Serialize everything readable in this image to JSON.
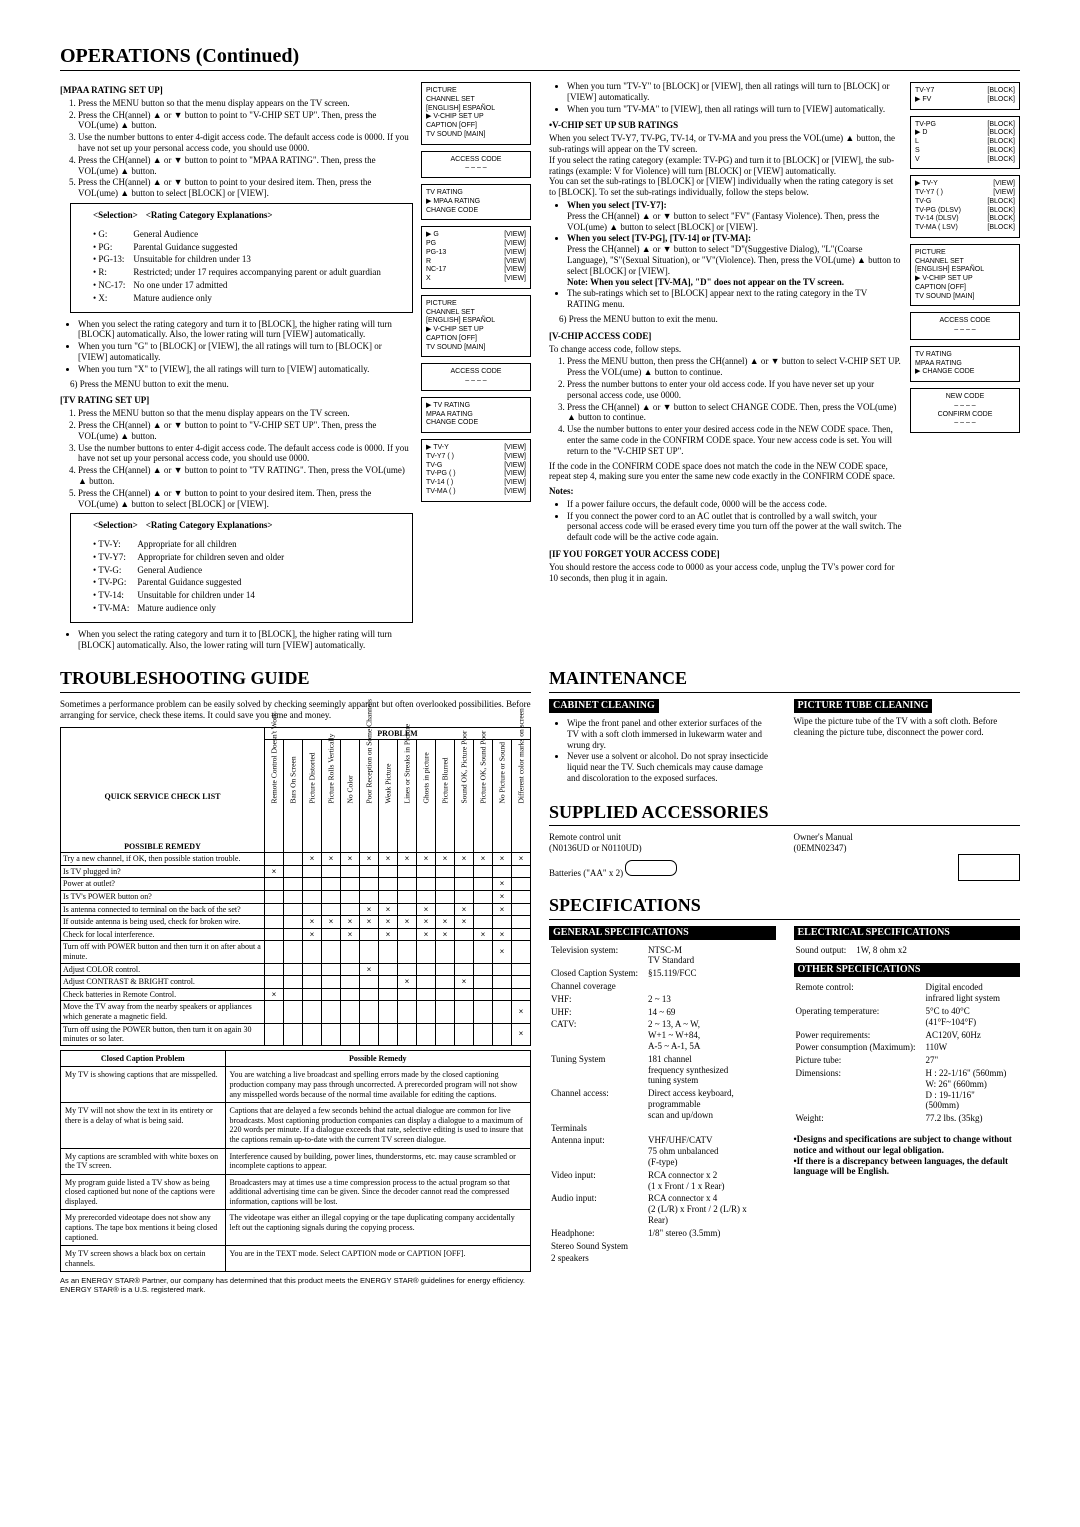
{
  "title_ops": "OPERATIONS (Continued)",
  "mpaa": {
    "head": "[MPAA RATING SET UP]",
    "steps": [
      "Press the MENU button so that the menu display appears on the TV screen.",
      "Press the CH(annel) ▲ or ▼ button to point to \"V-CHIP SET UP\". Then, press the VOL(ume) ▲ button.",
      "Use the number buttons to enter 4-digit access code. The default access code is 0000. If you have not set up your personal access code, you should use 0000.",
      "Press the CH(annel) ▲ or ▼ button to point to \"MPAA RATING\". Then, press the VOL(ume) ▲ button.",
      "Press the CH(annel) ▲ or ▼ button to point to your desired item. Then, press the VOL(ume) ▲ button to select [BLOCK] or [VIEW]."
    ],
    "sel_head": "<Selection>",
    "exp_head": "<Rating Category Explanations>",
    "ratings": [
      [
        "• G:",
        "General Audience"
      ],
      [
        "• PG:",
        "Parental Guidance suggested"
      ],
      [
        "• PG-13:",
        "Unsuitable for children under 13"
      ],
      [
        "• R:",
        "Restricted; under 17 requires accompanying parent or adult guardian"
      ],
      [
        "• NC-17:",
        "No one under 17 admitted"
      ],
      [
        "• X:",
        "Mature audience only"
      ]
    ],
    "notes": [
      "When you select the rating category and turn it to [BLOCK], the higher rating will turn [BLOCK] automatically. Also, the lower rating will turn [VIEW] automatically.",
      "When you turn \"G\" to [BLOCK] or [VIEW], the all ratings will turn to [BLOCK] or [VIEW] automatically.",
      "When you turn \"X\" to [VIEW], the all ratings will turn to [VIEW] automatically."
    ],
    "step6": "Press the MENU button to exit the menu."
  },
  "tv": {
    "head": "[TV RATING SET UP]",
    "steps": [
      "Press the MENU button so that the menu display appears on the TV screen.",
      "Press the CH(annel) ▲ or ▼ button to point to \"V-CHIP SET UP\". Then, press the VOL(ume) ▲ button.",
      "Use the number buttons to enter 4-digit access code. The default access code is 0000. If you have not set up your personal access code, you should use 0000.",
      "Press the CH(annel) ▲ or ▼ button to point to \"TV RATING\". Then, press the VOL(ume) ▲ button.",
      "Press the CH(annel) ▲ or ▼ button to point to your desired item. Then, press the VOL(ume) ▲ button to select [BLOCK] or [VIEW]."
    ],
    "ratings": [
      [
        "• TV-Y:",
        "Appropriate for all children"
      ],
      [
        "• TV-Y7:",
        "Appropriate for children seven and older"
      ],
      [
        "• TV-G:",
        "General Audience"
      ],
      [
        "• TV-PG:",
        "Parental Guidance suggested"
      ],
      [
        "• TV-14:",
        "Unsuitable for children under 14"
      ],
      [
        "• TV-MA:",
        "Mature audience only"
      ]
    ],
    "note": "When you select the rating category and turn it to [BLOCK], the higher rating will turn [BLOCK] automatically. Also, the lower rating will turn [VIEW] automatically."
  },
  "right": {
    "top_bullets": [
      "When you turn \"TV-Y\" to [BLOCK] or [VIEW], then all ratings will turn to [BLOCK] or [VIEW] automatically.",
      "When you turn \"TV-MA\" to [VIEW], then all ratings will turn to [VIEW] automatically."
    ],
    "sub_head": "•V-CHIP SET UP SUB RATINGS",
    "sub_text": "When you select TV-Y7, TV-PG, TV-14, or TV-MA and you press the VOL(ume) ▲ button, the sub-ratings will appear on the TV screen.\nIf you select the rating category (example: TV-PG) and turn it to [BLOCK] or [VIEW], the sub-ratings (example: V for Violence) will turn [BLOCK] or [VIEW] automatically.\nYou can set the sub-ratings to [BLOCK] or [VIEW] individually when the rating category is set to [BLOCK]. To set the sub-ratings individually, follow the steps below.",
    "when_y7_head": "When you select [TV-Y7]:",
    "when_y7_body": "Press the CH(annel) ▲ or ▼ button to select \"FV\" (Fantasy Violence). Then, press the VOL(ume) ▲ button to select [BLOCK] or [VIEW].",
    "when_pg_head": "When you select [TV-PG], [TV-14] or [TV-MA]:",
    "when_pg_body": "Press the CH(annel) ▲ or ▼ button to select \"D\"(Suggestive Dialog), \"L\"(Coarse Language), \"S\"(Sexual Situation), or \"V\"(Violence). Then, press the VOL(ume) ▲ button to select [BLOCK] or [VIEW].",
    "note_extra": "Note: When you select [TV-MA], \"D\" does not appear on the TV screen.",
    "sub_bullet": "The sub-ratings which set to [BLOCK] appear next to the rating category in the TV RATING menu.",
    "step6": "Press the MENU button to exit the menu.",
    "access_head": "[V-CHIP ACCESS CODE]",
    "access_lead": "To change access code, follow steps.",
    "access_steps": [
      "Press the MENU button, then press the CH(annel) ▲ or ▼ button to select V-CHIP SET UP. Press the VOL(ume) ▲ button to continue.",
      "Press the number buttons to enter your old access code. If you have never set up your personal access code, use 0000.",
      "Press the CH(annel) ▲ or ▼ button to select CHANGE CODE. Then, press the VOL(ume) ▲ button to continue.",
      "Use the number buttons to enter your desired access code in the NEW CODE space. Then, enter the same code in the CONFIRM CODE space. Your new access code is set. You will return to the \"V-CHIP SET UP\"."
    ],
    "access_warn": "If the code in the CONFIRM CODE space does not match the code in the NEW CODE space, repeat step 4, making sure you enter the same new code exactly in the CONFIRM CODE space.",
    "notes_head": "Notes:",
    "notes": [
      "If a power failure occurs, the default code, 0000 will be the access code.",
      "If you connect the power cord to an AC outlet that is controlled by a wall switch, your personal access code will be erased every time you turn off the power at the wall switch. The default code will be the active code again."
    ],
    "forget_head": "[IF YOU FORGET YOUR ACCESS CODE]",
    "forget_body": "You should restore the access code to 0000 as your access code, unplug the TV's power cord for 10 seconds, then plug it in again."
  },
  "osd": {
    "picture_menu": "PICTURE\nCHANNEL SET\n[ENGLISH] ESPAÑOL\n▶ V-CHIP SET UP\nCAPTION [OFF]\nTV SOUND [MAIN]",
    "access_code": "ACCESS CODE\n– – – –",
    "mpaa_menu": "TV RATING\n▶ MPAA RATING\nCHANGE CODE",
    "mpaa_list": [
      [
        "▶ G",
        "[VIEW]"
      ],
      [
        "PG",
        "[VIEW]"
      ],
      [
        "PG-13",
        "[VIEW]"
      ],
      [
        "R",
        "[VIEW]"
      ],
      [
        "NC-17",
        "[VIEW]"
      ],
      [
        "X",
        "[VIEW]"
      ]
    ],
    "tv_menu": "▶ TV RATING\nMPAA RATING\nCHANGE CODE",
    "tv_list": [
      [
        "▶ TV-Y",
        "[VIEW]"
      ],
      [
        "TV-Y7 (      )",
        "[VIEW]"
      ],
      [
        "TV-G",
        "[VIEW]"
      ],
      [
        "TV-PG (      )",
        "[VIEW]"
      ],
      [
        "TV-14 (      )",
        "[VIEW]"
      ],
      [
        "TV-MA (      )",
        "[VIEW]"
      ]
    ],
    "sub_y7": [
      [
        "TV-Y7",
        "[BLOCK]"
      ],
      [
        "▶ FV",
        "[BLOCK]"
      ]
    ],
    "sub_pg": [
      [
        "TV-PG",
        "[BLOCK]"
      ],
      [
        "▶ D",
        "[BLOCK]"
      ],
      [
        "L",
        "[BLOCK]"
      ],
      [
        "S",
        "[BLOCK]"
      ],
      [
        "V",
        "[BLOCK]"
      ]
    ],
    "sub_all": [
      [
        "▶ TV-Y",
        "[VIEW]"
      ],
      [
        "TV-Y7 (      )",
        "[VIEW]"
      ],
      [
        "TV-G",
        "[BLOCK]"
      ],
      [
        "TV-PG (DLSV)",
        "[BLOCK]"
      ],
      [
        "TV-14  (DLSV)",
        "[BLOCK]"
      ],
      [
        "TV-MA (  LSV)",
        "[BLOCK]"
      ]
    ],
    "change_menu": "TV RATING\nMPAA RATING\n▶ CHANGE CODE",
    "new_code": "NEW CODE\n– – – –\nCONFIRM CODE\n– – – –"
  },
  "trouble": {
    "title": "TROUBLESHOOTING GUIDE",
    "intro": "Sometimes a performance problem can be easily solved by checking seemingly apparent but often overlooked possibilities. Before arranging for service, check these items. It could save you time and money.",
    "problem": "PROBLEM",
    "qsc": "QUICK SERVICE CHECK LIST",
    "pr": "POSSIBLE REMEDY",
    "cols": [
      "Remote Control Doesn't Work",
      "Bars On Screen",
      "Picture Distorted",
      "Picture Rolls Vertically",
      "No Color",
      "Poor Reception on Some Channels",
      "Weak Picture",
      "Lines or Streaks in Picture",
      "Ghosts in picture",
      "Picture Blurred",
      "Sound OK, Picture Poor",
      "Picture OK, Sound Poor",
      "No Picture or Sound",
      "Different color marks on screen"
    ],
    "rows": [
      {
        "label": "Try a new channel, if OK, then possible station trouble.",
        "marks": [
          "",
          "",
          "×",
          "×",
          "×",
          "×",
          "×",
          "×",
          "×",
          "×",
          "×",
          "×",
          "×",
          "×"
        ]
      },
      {
        "label": "Is TV plugged in?",
        "marks": [
          "×",
          "",
          "",
          "",
          "",
          "",
          "",
          "",
          "",
          "",
          "",
          "",
          "",
          ""
        ]
      },
      {
        "label": "Power at outlet?",
        "marks": [
          "",
          "",
          "",
          "",
          "",
          "",
          "",
          "",
          "",
          "",
          "",
          "",
          "×",
          ""
        ]
      },
      {
        "label": "Is TV's POWER button on?",
        "marks": [
          "",
          "",
          "",
          "",
          "",
          "",
          "",
          "",
          "",
          "",
          "",
          "",
          "×",
          ""
        ]
      },
      {
        "label": "Is antenna connected to terminal on the back of the set?",
        "marks": [
          "",
          "",
          "",
          "",
          "",
          "×",
          "×",
          "",
          "×",
          "",
          "×",
          "",
          "×",
          ""
        ]
      },
      {
        "label": "If outside antenna is being used, check for broken wire.",
        "marks": [
          "",
          "",
          "×",
          "×",
          "×",
          "×",
          "×",
          "×",
          "×",
          "×",
          "×",
          "",
          "",
          ""
        ]
      },
      {
        "label": "Check for local interference.",
        "marks": [
          "",
          "",
          "×",
          "",
          "×",
          "",
          "×",
          "",
          "×",
          "×",
          "",
          "×",
          "×",
          ""
        ]
      },
      {
        "label": "Turn off with POWER button and then turn it on after about a minute.",
        "marks": [
          "",
          "",
          "",
          "",
          "",
          "",
          "",
          "",
          "",
          "",
          "",
          "",
          "×",
          ""
        ]
      },
      {
        "label": "Adjust COLOR control.",
        "marks": [
          "",
          "",
          "",
          "",
          "",
          "×",
          "",
          "",
          "",
          "",
          "",
          "",
          "",
          ""
        ]
      },
      {
        "label": "Adjust CONTRAST & BRIGHT control.",
        "marks": [
          "",
          "",
          "",
          "",
          "",
          "",
          "",
          "×",
          "",
          "",
          "×",
          "",
          "",
          ""
        ]
      },
      {
        "label": "Check batteries in Remote Control.",
        "marks": [
          "×",
          "",
          "",
          "",
          "",
          "",
          "",
          "",
          "",
          "",
          "",
          "",
          "",
          ""
        ]
      },
      {
        "label": "Move the TV away from the nearby speakers or appliances which generate a magnetic field.",
        "marks": [
          "",
          "",
          "",
          "",
          "",
          "",
          "",
          "",
          "",
          "",
          "",
          "",
          "",
          "×"
        ]
      },
      {
        "label": "Turn off using the POWER button, then turn it on again 30 minutes or so later.",
        "marks": [
          "",
          "",
          "",
          "",
          "",
          "",
          "",
          "",
          "",
          "",
          "",
          "",
          "",
          "×"
        ]
      }
    ],
    "cc_head_l": "Closed Caption Problem",
    "cc_head_r": "Possible Remedy",
    "cc_rows": [
      [
        "My TV is showing captions that are misspelled.",
        "You are watching a live broadcast and spelling errors made by the closed captioning production company may pass through uncorrected. A prerecorded program will not show any misspelled words because of the normal time available for editing the captions."
      ],
      [
        "My TV will not show the text in its entirety or there is a delay of what is being said.",
        "Captions that are delayed a few seconds behind the actual dialogue are common for live broadcasts. Most captioning production companies can display a dialogue to a maximum of 220 words per minute. If a dialogue exceeds that rate, selective editing is used to insure that the captions remain up-to-date with the current TV screen dialogue."
      ],
      [
        "My captions are scrambled with white boxes on the TV screen.",
        "Interference caused by building, power lines, thunderstorms, etc. may cause scrambled or incomplete captions to appear."
      ],
      [
        "My program guide listed a TV show as being closed captioned but none of the captions were displayed.",
        "Broadcasters may at times use a time compression process to the actual program so that additional advertising time can be given. Since the decoder cannot read the compressed information, captions will be lost."
      ],
      [
        "My prerecorded videotape does not show any captions. The tape box mentions it being closed captioned.",
        "The videotape was either an illegal copying or the tape duplicating company accidentally left out the captioning signals during the copying process."
      ],
      [
        "My TV screen shows a black box on certain channels.",
        "You are in the TEXT mode. Select CAPTION mode or CAPTION [OFF]."
      ]
    ],
    "estar": "As an ENERGY STAR® Partner, our company has determined that this product meets the ENERGY STAR® guidelines for energy efficiency. ENERGY STAR® is a U.S. registered mark."
  },
  "maintenance": {
    "title": "MAINTENANCE",
    "cab_head": "CABINET CLEANING",
    "cab": [
      "Wipe the front panel and other exterior surfaces of the TV with a soft cloth immersed in lukewarm water and wrung dry.",
      "Never use a solvent or alcohol. Do not spray insecticide liquid near the TV. Such chemicals may cause damage and discoloration to the exposed surfaces."
    ],
    "tube_head": "PICTURE TUBE CLEANING",
    "tube": "Wipe the picture tube of the TV with a soft cloth. Before cleaning the picture tube, disconnect the power cord."
  },
  "supplied": {
    "title": "SUPPLIED ACCESSORIES",
    "remote_label": "Remote control unit",
    "remote_model": "(N0136UD or N0110UD)",
    "batt_label": "Batteries (\"AA\" x 2)",
    "manual_label": "Owner's Manual",
    "manual_model": "(0EMN02347)"
  },
  "specs": {
    "title": "SPECIFICATIONS",
    "gen_head": "GENERAL SPECIFICATIONS",
    "elec_head": "ELECTRICAL SPECIFICATIONS",
    "other_head": "OTHER SPECIFICATIONS",
    "gen": [
      [
        "Television system:",
        "NTSC-M\nTV Standard"
      ],
      [
        "Closed Caption System:",
        "§15.119/FCC"
      ],
      [
        "Channel coverage",
        ""
      ],
      [
        "  VHF:",
        "2 ~ 13"
      ],
      [
        "  UHF:",
        "14 ~ 69"
      ],
      [
        "  CATV:",
        "2 ~ 13, A ~ W,\nW+1 ~ W+84,\nA-5 ~ A-1, 5A"
      ],
      [
        "Tuning System",
        "181 channel\nfrequency synthesized\ntuning system"
      ],
      [
        "Channel access:",
        "Direct access keyboard,\nprogrammable\nscan and up/down"
      ],
      [
        "Terminals",
        ""
      ],
      [
        "  Antenna input:",
        "VHF/UHF/CATV\n75 ohm unbalanced\n(F-type)"
      ],
      [
        "  Video input:",
        "RCA connector x 2\n(1 x Front / 1 x Rear)"
      ],
      [
        "  Audio input:",
        "RCA connector x 4\n(2 (L/R) x Front / 2 (L/R) x Rear)"
      ],
      [
        "  Headphone:",
        "1/8\" stereo (3.5mm)"
      ],
      [
        "Stereo Sound System",
        ""
      ],
      [
        "2 speakers",
        ""
      ]
    ],
    "elec": [
      [
        "Sound output:",
        "1W, 8 ohm x2"
      ]
    ],
    "other": [
      [
        "Remote control:",
        "Digital encoded\ninfrared light system"
      ],
      [
        "Operating temperature:",
        "5°C to 40°C\n(41°F~104°F)"
      ],
      [
        "Power requirements:",
        "AC120V, 60Hz"
      ],
      [
        "Power consumption (Maximum):",
        "110W"
      ],
      [
        "Picture tube:",
        "27\""
      ],
      [
        "Dimensions:",
        "H : 22-1/16\" (560mm)\nW: 26\" (660mm)\nD : 19-11/16\" (500mm)"
      ],
      [
        "Weight:",
        "77.2 lbs. (35kg)"
      ]
    ],
    "notice1": "•Designs and specifications are subject to change without notice and without our legal obligation.",
    "notice2": "•If there is a discrepancy between languages, the default language will be English."
  }
}
